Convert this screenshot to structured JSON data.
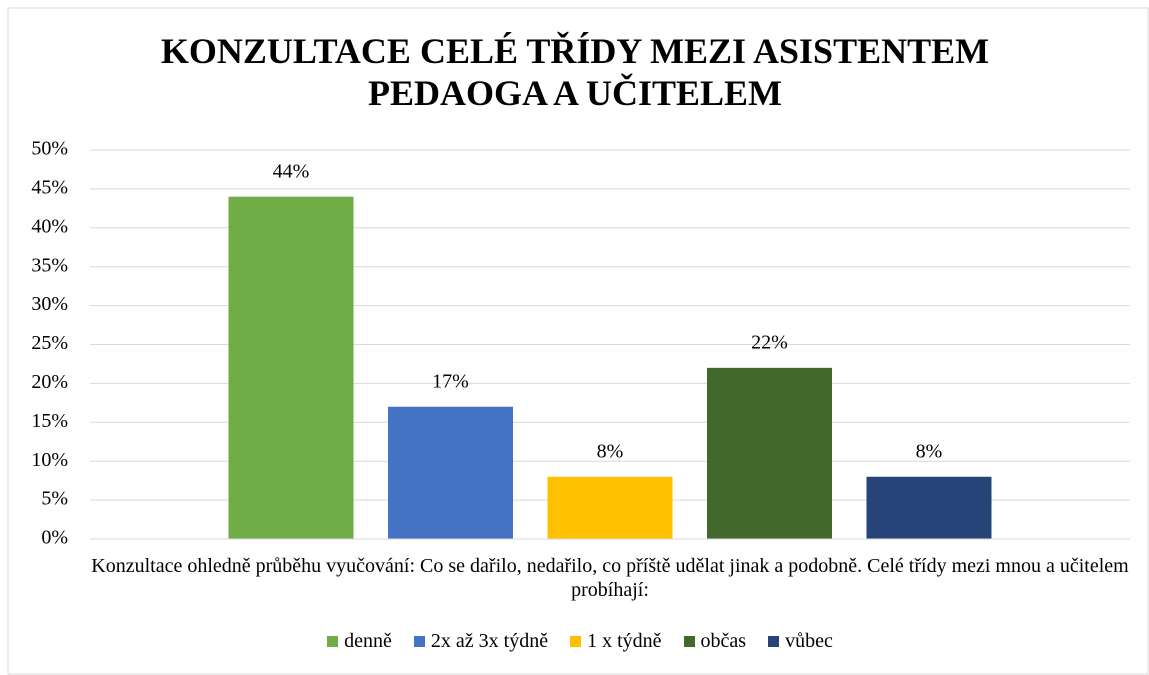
{
  "chart_data": {
    "type": "bar",
    "title": "KONZULTACE CELÉ TŘÍDY MEZI ASISTENTEM PEDAOGA A UČITELEM",
    "categories": [
      "Konzultace ohledně průběhu vyučování: Co se dařilo, nedařilo, co příště udělat jinak a podobně. Celé třídy mezi mnou a učitelem probíhají:"
    ],
    "series": [
      {
        "name": "denně",
        "color": "#70ad47",
        "values": [
          44
        ],
        "value_labels": [
          "44%"
        ]
      },
      {
        "name": "2x až 3x týdně",
        "color": "#4472c4",
        "values": [
          17
        ],
        "value_labels": [
          "17%"
        ]
      },
      {
        "name": "1 x týdně",
        "color": "#ffc000",
        "values": [
          8
        ],
        "value_labels": [
          "8%"
        ]
      },
      {
        "name": "občas",
        "color": "#43682b",
        "values": [
          22
        ],
        "value_labels": [
          "22%"
        ]
      },
      {
        "name": "vůbec",
        "color": "#264478",
        "values": [
          8
        ],
        "value_labels": [
          "8%"
        ]
      }
    ],
    "ylim": [
      0,
      50
    ],
    "yticks": [
      {
        "value": 0,
        "label": "0%"
      },
      {
        "value": 5,
        "label": "5%"
      },
      {
        "value": 10,
        "label": "10%"
      },
      {
        "value": 15,
        "label": "15%"
      },
      {
        "value": 20,
        "label": "20%"
      },
      {
        "value": 25,
        "label": "25%"
      },
      {
        "value": 30,
        "label": "30%"
      },
      {
        "value": 35,
        "label": "35%"
      },
      {
        "value": 40,
        "label": "40%"
      },
      {
        "value": 45,
        "label": "45%"
      },
      {
        "value": 50,
        "label": "50%"
      }
    ],
    "grid": true,
    "legend": "bottom"
  }
}
